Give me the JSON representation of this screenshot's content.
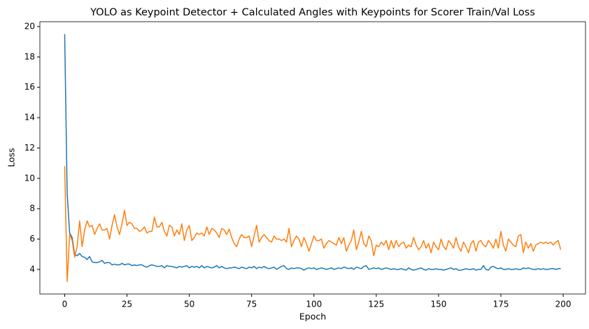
{
  "chart_data": {
    "type": "line",
    "title": "YOLO as Keypoint Detector + Calculated Angles with Keypoints for Scorer Train/Val Loss",
    "x_label": "Epoch",
    "y_label": "Loss",
    "x": [
      0,
      1,
      2,
      3,
      4,
      5,
      6,
      7,
      8,
      9,
      10,
      11,
      12,
      13,
      14,
      15,
      16,
      17,
      18,
      19,
      20,
      21,
      22,
      23,
      24,
      25,
      26,
      27,
      28,
      29,
      30,
      31,
      32,
      33,
      34,
      35,
      36,
      37,
      38,
      39,
      40,
      41,
      42,
      43,
      44,
      45,
      46,
      47,
      48,
      49,
      50,
      51,
      52,
      53,
      54,
      55,
      56,
      57,
      58,
      59,
      60,
      61,
      62,
      63,
      64,
      65,
      66,
      67,
      68,
      69,
      70,
      71,
      72,
      73,
      74,
      75,
      76,
      77,
      78,
      79,
      80,
      81,
      82,
      83,
      84,
      85,
      86,
      87,
      88,
      89,
      90,
      91,
      92,
      93,
      94,
      95,
      96,
      97,
      98,
      99,
      100,
      101,
      102,
      103,
      104,
      105,
      106,
      107,
      108,
      109,
      110,
      111,
      112,
      113,
      114,
      115,
      116,
      117,
      118,
      119,
      120,
      121,
      122,
      123,
      124,
      125,
      126,
      127,
      128,
      129,
      130,
      131,
      132,
      133,
      134,
      135,
      136,
      137,
      138,
      139,
      140,
      141,
      142,
      143,
      144,
      145,
      146,
      147,
      148,
      149,
      150,
      151,
      152,
      153,
      154,
      155,
      156,
      157,
      158,
      159,
      160,
      161,
      162,
      163,
      164,
      165,
      166,
      167,
      168,
      169,
      170,
      171,
      172,
      173,
      174,
      175,
      176,
      177,
      178,
      179,
      180,
      181,
      182,
      183,
      184,
      185,
      186,
      187,
      188,
      189,
      190,
      191,
      192,
      193,
      194,
      195,
      196,
      197,
      198,
      199
    ],
    "series": [
      {
        "color": "#1f77b4",
        "values": [
          19.5,
          9.0,
          6.4,
          6.1,
          5.0,
          4.9,
          5.05,
          4.85,
          4.8,
          4.65,
          4.85,
          4.5,
          4.45,
          4.45,
          4.5,
          4.6,
          4.4,
          4.45,
          4.45,
          4.3,
          4.35,
          4.3,
          4.3,
          4.4,
          4.3,
          4.35,
          4.35,
          4.25,
          4.3,
          4.25,
          4.3,
          4.3,
          4.2,
          4.15,
          4.25,
          4.3,
          4.25,
          4.2,
          4.2,
          4.25,
          4.1,
          4.25,
          4.2,
          4.2,
          4.15,
          4.1,
          4.2,
          4.15,
          4.2,
          4.25,
          4.1,
          4.2,
          4.15,
          4.2,
          4.1,
          4.25,
          4.1,
          4.2,
          4.15,
          4.1,
          4.15,
          4.25,
          4.1,
          4.2,
          4.1,
          4.05,
          4.1,
          4.1,
          4.15,
          4.1,
          4.05,
          4.15,
          4.1,
          4.05,
          4.15,
          4.1,
          4.2,
          4.05,
          4.15,
          4.1,
          4.2,
          4.1,
          4.05,
          4.1,
          4.15,
          4.0,
          4.1,
          4.2,
          4.25,
          4.05,
          4.0,
          4.1,
          4.05,
          4.1,
          4.1,
          4.05,
          3.95,
          4.05,
          4.1,
          4.05,
          4.1,
          4.0,
          4.05,
          4.1,
          4.05,
          4.0,
          4.05,
          4.1,
          4.0,
          4.05,
          4.1,
          4.05,
          4.15,
          4.1,
          4.05,
          4.1,
          4.0,
          4.15,
          4.1,
          4.05,
          4.2,
          4.25,
          4.0,
          4.05,
          4.1,
          4.05,
          4.1,
          4.0,
          4.05,
          4.1,
          4.05,
          4.0,
          4.05,
          4.0,
          4.0,
          4.05,
          4.0,
          3.95,
          4.1,
          4.0,
          3.95,
          4.0,
          4.05,
          4.1,
          4.0,
          3.95,
          4.05,
          4.0,
          4.0,
          4.05,
          4.0,
          4.0,
          3.95,
          4.0,
          4.05,
          4.1,
          4.0,
          4.05,
          3.95,
          3.95,
          4.0,
          4.05,
          4.0,
          4.0,
          4.05,
          3.95,
          4.0,
          4.0,
          4.25,
          4.0,
          3.95,
          4.15,
          4.2,
          4.1,
          4.05,
          4.1,
          4.0,
          4.0,
          4.05,
          4.0,
          4.0,
          4.05,
          4.0,
          4.0,
          4.1,
          4.05,
          4.1,
          4.05,
          4.0,
          4.0,
          4.05,
          4.0,
          4.05,
          4.0,
          4.0,
          4.05,
          4.05,
          4.0,
          4.05,
          4.05
        ]
      },
      {
        "color": "#ff7f0e",
        "values": [
          10.8,
          3.2,
          6.3,
          5.9,
          4.8,
          5.5,
          7.2,
          5.5,
          6.6,
          7.2,
          6.8,
          6.9,
          6.3,
          6.7,
          7.0,
          6.6,
          6.6,
          6.7,
          6.0,
          6.9,
          7.6,
          6.8,
          6.3,
          7.0,
          7.9,
          6.9,
          7.1,
          7.0,
          6.7,
          6.7,
          6.5,
          6.6,
          6.8,
          6.4,
          6.5,
          6.5,
          7.45,
          6.8,
          6.8,
          7.1,
          6.5,
          6.2,
          6.9,
          6.8,
          6.2,
          6.6,
          6.3,
          7.0,
          5.9,
          6.6,
          6.9,
          5.9,
          6.1,
          6.4,
          6.3,
          6.4,
          6.2,
          6.8,
          6.3,
          6.7,
          6.6,
          6.4,
          6.1,
          6.7,
          6.6,
          6.3,
          6.65,
          6.1,
          5.7,
          5.5,
          6.0,
          6.3,
          6.1,
          6.1,
          6.2,
          5.5,
          6.2,
          6.9,
          5.8,
          6.1,
          6.3,
          6.1,
          5.9,
          5.8,
          6.2,
          6.0,
          6.0,
          5.9,
          6.0,
          5.8,
          6.7,
          5.5,
          5.9,
          6.2,
          6.0,
          5.5,
          6.1,
          5.7,
          5.2,
          5.7,
          6.2,
          5.9,
          5.9,
          6.0,
          5.4,
          5.7,
          5.9,
          5.8,
          5.7,
          5.6,
          6.1,
          5.7,
          6.1,
          5.2,
          5.6,
          5.9,
          6.6,
          5.3,
          5.8,
          6.5,
          5.7,
          5.5,
          6.2,
          5.9,
          4.9,
          5.6,
          5.5,
          5.8,
          5.6,
          5.9,
          5.3,
          5.9,
          5.4,
          5.9,
          5.5,
          5.7,
          5.8,
          5.4,
          5.6,
          5.5,
          6.1,
          5.6,
          5.3,
          5.5,
          5.9,
          5.4,
          5.7,
          5.1,
          5.8,
          5.5,
          5.3,
          6.0,
          5.5,
          5.3,
          5.9,
          5.7,
          5.4,
          6.1,
          5.5,
          5.2,
          5.8,
          5.5,
          5.1,
          5.7,
          5.9,
          5.2,
          5.8,
          5.9,
          5.6,
          5.5,
          5.9,
          5.7,
          5.4,
          6.0,
          5.4,
          6.5,
          5.6,
          5.2,
          6.0,
          5.8,
          5.6,
          5.5,
          6.2,
          6.3,
          5.1,
          5.8,
          5.4,
          5.7,
          5.2,
          5.6,
          5.7,
          5.8,
          5.7,
          5.8,
          5.7,
          5.8,
          5.6,
          5.8,
          5.9,
          5.3
        ]
      }
    ],
    "xlim": [
      -9.95,
      208.95
    ],
    "xticks": [
      0,
      25,
      50,
      75,
      100,
      125,
      150,
      175,
      200
    ],
    "ylim": [
      2.38,
      20.32
    ],
    "yticks": [
      4,
      6,
      8,
      10,
      12,
      14,
      16,
      18,
      20
    ]
  }
}
